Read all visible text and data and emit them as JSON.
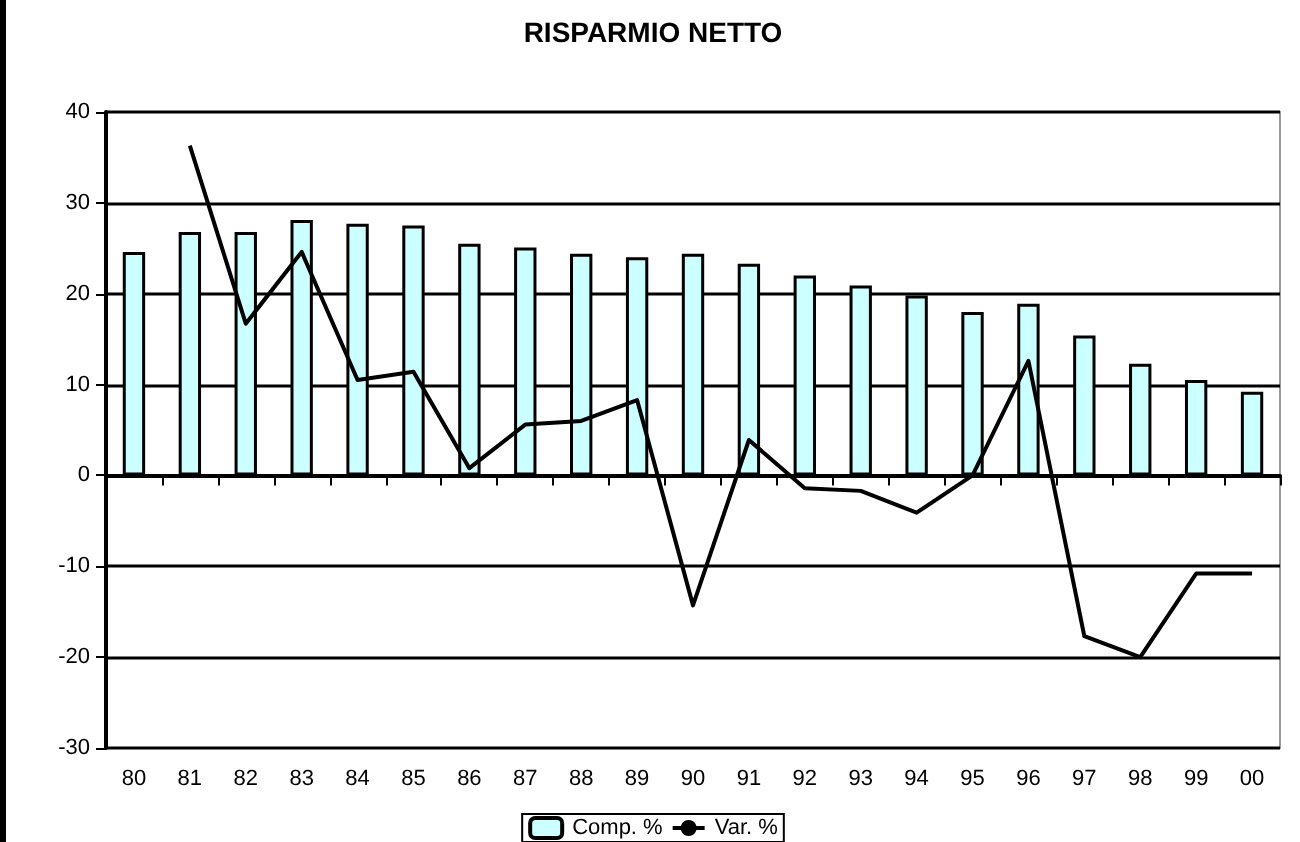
{
  "chart_data": {
    "type": "bar",
    "title": "RISPARMIO NETTO",
    "categories": [
      "80",
      "81",
      "82",
      "83",
      "84",
      "85",
      "86",
      "87",
      "88",
      "89",
      "90",
      "91",
      "92",
      "93",
      "94",
      "95",
      "96",
      "97",
      "98",
      "99",
      "00"
    ],
    "series": [
      {
        "name": "Comp. %",
        "color": "#ccffff",
        "values": [
          24.6,
          26.8,
          26.8,
          28.1,
          27.7,
          27.5,
          25.5,
          25.1,
          24.4,
          24.0,
          24.4,
          23.3,
          22.0,
          20.9,
          19.8,
          18.0,
          18.9,
          15.4,
          12.3,
          10.5,
          9.2
        ]
      },
      {
        "name": "Var. %",
        "type": "line",
        "color": "#000000",
        "values": [
          null,
          36.3,
          16.7,
          24.6,
          10.5,
          11.4,
          0.8,
          5.6,
          6.0,
          8.3,
          -14.3,
          3.9,
          -1.4,
          -1.7,
          -4.1,
          0,
          12.6,
          -17.7,
          -20,
          -10.8,
          -10.8
        ]
      }
    ],
    "ylim": [
      -30,
      40
    ],
    "yticks": [
      -30,
      -20,
      -10,
      0,
      10,
      20,
      30,
      40
    ],
    "grid": "y",
    "legend": "bottom",
    "marker": "none",
    "line_style": "solid"
  }
}
